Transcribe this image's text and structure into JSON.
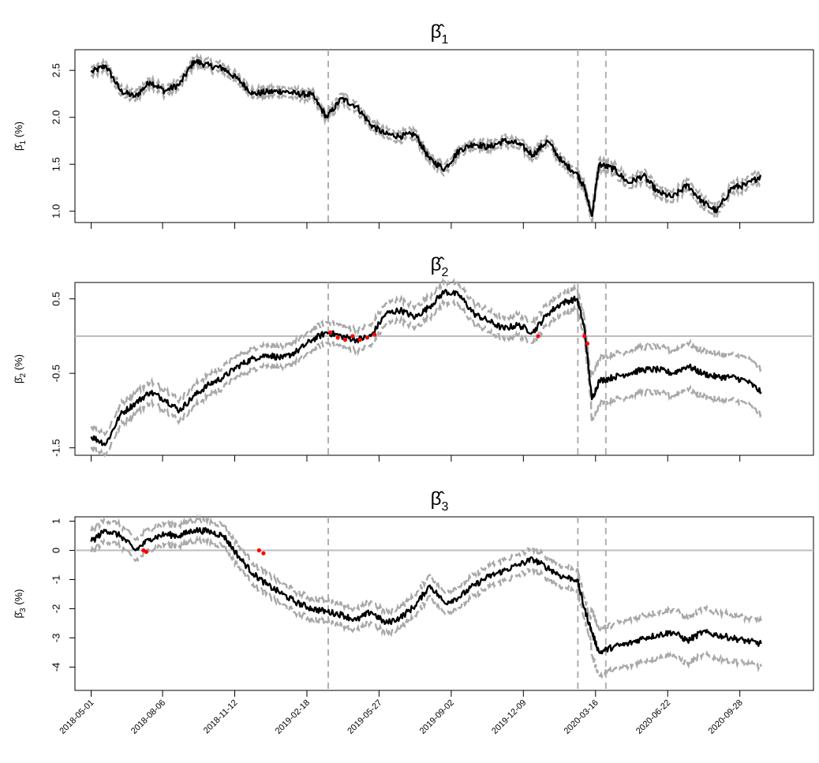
{
  "chart_data": [
    {
      "type": "line",
      "title": "β̂1",
      "ylabel": "β̂1 (%)",
      "ylim": [
        0.88,
        2.72
      ],
      "yticks": [
        "1.0",
        "1.5",
        "2.0",
        "2.5"
      ],
      "zero_line": false,
      "xlim": [
        "2018-04-09",
        "2021-01-06"
      ],
      "xticks": [
        "2018-05-01",
        "2018-08-06",
        "2018-11-12",
        "2019-02-18",
        "2019-05-27",
        "2019-09-02",
        "2019-12-09",
        "2020-03-16",
        "2020-06-22",
        "2020-09-28"
      ],
      "vlines": [
        "2019-03-19",
        "2020-02-21",
        "2020-03-30"
      ],
      "series": [
        {
          "role": "estimate",
          "color": "#000000",
          "x": [
            "2018-05-01",
            "2018-05-21",
            "2018-06-10",
            "2018-06-30",
            "2018-07-20",
            "2018-08-09",
            "2018-08-29",
            "2018-09-18",
            "2018-10-08",
            "2018-10-28",
            "2018-11-17",
            "2018-12-07",
            "2018-12-27",
            "2019-01-16",
            "2019-02-05",
            "2019-02-25",
            "2019-03-17",
            "2019-04-06",
            "2019-04-26",
            "2019-05-16",
            "2019-06-05",
            "2019-06-25",
            "2019-07-15",
            "2019-08-04",
            "2019-08-24",
            "2019-09-13",
            "2019-10-03",
            "2019-10-23",
            "2019-11-12",
            "2019-12-02",
            "2019-12-22",
            "2020-01-11",
            "2020-01-31",
            "2020-02-20",
            "2020-03-01",
            "2020-03-11",
            "2020-03-21",
            "2020-04-10",
            "2020-04-30",
            "2020-05-20",
            "2020-06-09",
            "2020-06-29",
            "2020-07-19",
            "2020-08-08",
            "2020-08-28",
            "2020-09-17",
            "2020-10-07",
            "2020-10-27"
          ],
          "values": [
            2.48,
            2.55,
            2.28,
            2.22,
            2.38,
            2.28,
            2.35,
            2.6,
            2.55,
            2.52,
            2.4,
            2.25,
            2.27,
            2.28,
            2.25,
            2.24,
            2.0,
            2.2,
            2.12,
            1.92,
            1.82,
            1.8,
            1.82,
            1.55,
            1.45,
            1.65,
            1.72,
            1.68,
            1.75,
            1.72,
            1.6,
            1.75,
            1.52,
            1.4,
            1.25,
            0.95,
            1.5,
            1.45,
            1.3,
            1.38,
            1.2,
            1.15,
            1.28,
            1.1,
            1.0,
            1.25,
            1.28,
            1.38
          ]
        }
      ]
    },
    {
      "type": "line",
      "title": "β̂2",
      "ylabel": "β̂2 (%)",
      "ylim": [
        -1.6,
        0.72
      ],
      "yticks": [
        "-1.5",
        "-0.5",
        "0.5"
      ],
      "zero_line": true,
      "xlim": [
        "2018-04-09",
        "2021-01-06"
      ],
      "xticks": [
        "2018-05-01",
        "2018-08-06",
        "2018-11-12",
        "2019-02-18",
        "2019-05-27",
        "2019-09-02",
        "2019-12-09",
        "2020-03-16",
        "2020-06-22",
        "2020-09-28"
      ],
      "vlines": [
        "2019-03-19",
        "2020-02-21",
        "2020-03-30"
      ],
      "series": [
        {
          "role": "estimate",
          "color": "#000000",
          "x": [
            "2018-05-01",
            "2018-05-21",
            "2018-06-10",
            "2018-06-30",
            "2018-07-20",
            "2018-08-09",
            "2018-08-29",
            "2018-09-18",
            "2018-10-08",
            "2018-10-28",
            "2018-11-17",
            "2018-12-07",
            "2018-12-27",
            "2019-01-16",
            "2019-02-05",
            "2019-02-25",
            "2019-03-17",
            "2019-04-06",
            "2019-04-26",
            "2019-05-16",
            "2019-06-05",
            "2019-06-25",
            "2019-07-15",
            "2019-08-04",
            "2019-08-24",
            "2019-09-13",
            "2019-10-03",
            "2019-10-23",
            "2019-11-12",
            "2019-12-02",
            "2019-12-22",
            "2020-01-11",
            "2020-01-31",
            "2020-02-20",
            "2020-03-01",
            "2020-03-11",
            "2020-03-21",
            "2020-04-10",
            "2020-04-30",
            "2020-05-20",
            "2020-06-09",
            "2020-06-29",
            "2020-07-19",
            "2020-08-08",
            "2020-08-28",
            "2020-09-17",
            "2020-10-07",
            "2020-10-27"
          ],
          "values": [
            -1.35,
            -1.45,
            -1.05,
            -0.9,
            -0.75,
            -0.85,
            -1.0,
            -0.8,
            -0.65,
            -0.55,
            -0.4,
            -0.3,
            -0.25,
            -0.3,
            -0.2,
            -0.05,
            0.05,
            0.0,
            -0.05,
            0.0,
            0.3,
            0.35,
            0.25,
            0.4,
            0.6,
            0.55,
            0.3,
            0.2,
            0.1,
            0.15,
            0.05,
            0.3,
            0.45,
            0.5,
            0.1,
            -0.85,
            -0.6,
            -0.55,
            -0.5,
            -0.45,
            -0.45,
            -0.5,
            -0.4,
            -0.5,
            -0.55,
            -0.55,
            -0.6,
            -0.75
          ]
        },
        {
          "role": "flagged",
          "color": "#ff0000",
          "x": [
            "2019-03-22",
            "2019-04-01",
            "2019-04-11",
            "2019-04-21",
            "2019-05-01",
            "2019-05-11",
            "2019-05-21",
            "2019-12-29",
            "2020-03-01",
            "2020-03-05"
          ],
          "values": [
            0.05,
            -0.02,
            -0.05,
            0.0,
            -0.05,
            -0.02,
            0.02,
            0.0,
            0.0,
            -0.1
          ]
        }
      ]
    },
    {
      "type": "line",
      "title": "β̂3",
      "ylabel": "β̂3 (%)",
      "ylim": [
        -4.8,
        1.15
      ],
      "yticks": [
        "-4",
        "-3",
        "-2",
        "-1",
        "0",
        "1"
      ],
      "zero_line": true,
      "xlim": [
        "2018-04-09",
        "2021-01-06"
      ],
      "xticks": [
        "2018-05-01",
        "2018-08-06",
        "2018-11-12",
        "2019-02-18",
        "2019-05-27",
        "2019-09-02",
        "2019-12-09",
        "2020-03-16",
        "2020-06-22",
        "2020-09-28"
      ],
      "vlines": [
        "2019-03-19",
        "2020-02-21",
        "2020-03-30"
      ],
      "series": [
        {
          "role": "estimate",
          "color": "#000000",
          "x": [
            "2018-05-01",
            "2018-05-21",
            "2018-06-10",
            "2018-06-30",
            "2018-07-20",
            "2018-08-09",
            "2018-08-29",
            "2018-09-18",
            "2018-10-08",
            "2018-10-28",
            "2018-11-17",
            "2018-12-07",
            "2018-12-27",
            "2019-01-16",
            "2019-02-05",
            "2019-02-25",
            "2019-03-17",
            "2019-04-06",
            "2019-04-26",
            "2019-05-16",
            "2019-06-05",
            "2019-06-25",
            "2019-07-15",
            "2019-08-04",
            "2019-08-24",
            "2019-09-13",
            "2019-10-03",
            "2019-10-23",
            "2019-11-12",
            "2019-12-02",
            "2019-12-22",
            "2020-01-11",
            "2020-01-31",
            "2020-02-20",
            "2020-03-01",
            "2020-03-11",
            "2020-03-21",
            "2020-04-10",
            "2020-04-30",
            "2020-05-20",
            "2020-06-09",
            "2020-06-29",
            "2020-07-19",
            "2020-08-08",
            "2020-08-28",
            "2020-09-17",
            "2020-10-07",
            "2020-10-27"
          ],
          "values": [
            0.3,
            0.7,
            0.5,
            0.0,
            0.4,
            0.55,
            0.5,
            0.7,
            0.65,
            0.5,
            -0.2,
            -0.8,
            -1.2,
            -1.5,
            -1.8,
            -2.0,
            -2.1,
            -2.2,
            -2.4,
            -2.1,
            -2.5,
            -2.3,
            -1.9,
            -1.2,
            -1.8,
            -1.6,
            -1.2,
            -0.9,
            -0.7,
            -0.5,
            -0.3,
            -0.6,
            -0.9,
            -1.0,
            -2.0,
            -2.8,
            -3.5,
            -3.3,
            -3.2,
            -3.0,
            -2.9,
            -2.8,
            -3.1,
            -2.8,
            -2.9,
            -3.0,
            -3.1,
            -3.2
          ]
        },
        {
          "role": "flagged",
          "color": "#ff0000",
          "x": [
            "2018-07-11",
            "2018-07-15",
            "2018-12-15",
            "2018-12-21"
          ],
          "values": [
            0.0,
            -0.05,
            0.0,
            -0.1
          ]
        }
      ]
    }
  ]
}
